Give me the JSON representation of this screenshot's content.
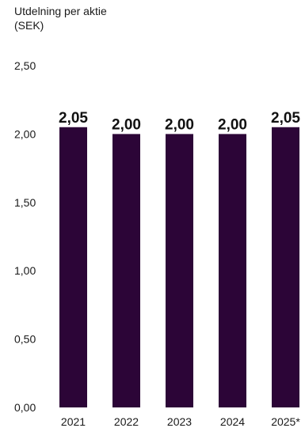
{
  "colors": {
    "bar": "#2c0537",
    "text": "#1a1a1a"
  },
  "chart_data": {
    "type": "bar",
    "title": "",
    "ylabel_lines": [
      "Utdelning per aktie",
      "(SEK)"
    ],
    "xlabel": "",
    "categories": [
      "2021",
      "2022",
      "2023",
      "2024",
      "2025*"
    ],
    "values": [
      2.05,
      2.0,
      2.0,
      2.0,
      2.05
    ],
    "data_labels": [
      "2,05",
      "2,00",
      "2,00",
      "2,00",
      "2,05"
    ],
    "ylim": [
      0,
      2.5
    ],
    "yticks": [
      0,
      0.5,
      1,
      1.5,
      2,
      2.5
    ],
    "ytick_labels": [
      "0,00",
      "0,50",
      "1,00",
      "1,50",
      "2,00",
      "2,50"
    ],
    "grid": false,
    "legend": "none"
  }
}
